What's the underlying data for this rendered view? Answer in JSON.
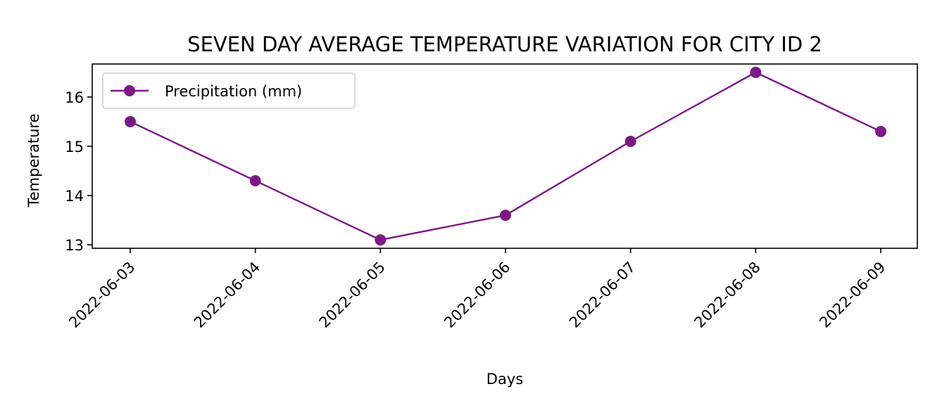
{
  "chart_data": {
    "type": "line",
    "title": "SEVEN DAY AVERAGE TEMPERATURE VARIATION FOR CITY ID 2",
    "xlabel": "Days",
    "ylabel": "Temperature",
    "categories": [
      "2022-06-03",
      "2022-06-04",
      "2022-06-05",
      "2022-06-06",
      "2022-06-07",
      "2022-06-08",
      "2022-06-09"
    ],
    "series": [
      {
        "name": "Precipitation (mm)",
        "values": [
          15.5,
          14.3,
          13.1,
          13.6,
          15.1,
          16.5,
          15.3
        ],
        "color": "#7b1a86",
        "marker": "circle"
      }
    ],
    "yticks": [
      13,
      14,
      15,
      16
    ],
    "ylim": [
      12.93,
      16.67
    ],
    "grid": false,
    "legend": "upper-left",
    "x_tick_rotation": 45
  }
}
